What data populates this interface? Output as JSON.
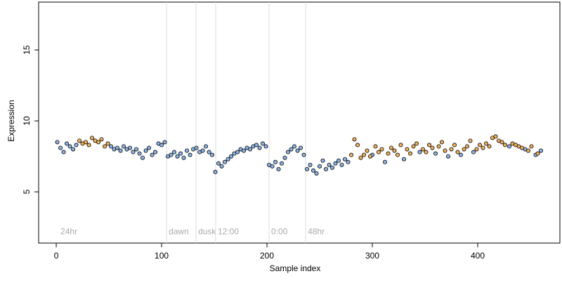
{
  "chart_data": {
    "type": "scatter",
    "x_label": "Sample index",
    "y_label": "Expression",
    "xlim": [
      -16.7,
      478
    ],
    "ylim": [
      1.39,
      18.37
    ],
    "xticks": [
      0,
      100,
      200,
      300,
      400
    ],
    "yticks": [
      5,
      10,
      15
    ],
    "grid": false,
    "series": [
      {
        "name": null,
        "color": "#8db5e6",
        "x": [
          1,
          4,
          7,
          10,
          13,
          16,
          19,
          52,
          55,
          58,
          61,
          64,
          67,
          70,
          73,
          76,
          79,
          82,
          85,
          88,
          91,
          94,
          97,
          100,
          103,
          106,
          109,
          112,
          115,
          118,
          121,
          124,
          127,
          130,
          133,
          136,
          139,
          142,
          145,
          148,
          151,
          154,
          157,
          160,
          163,
          166,
          169,
          172,
          175,
          178,
          181,
          184,
          187,
          190,
          193,
          196,
          199,
          202,
          205,
          208,
          211,
          214,
          217,
          220,
          223,
          226,
          229,
          232,
          235,
          238,
          241,
          244,
          247,
          250,
          253,
          256,
          259,
          262,
          265,
          268,
          271,
          274,
          277,
          300,
          312,
          330,
          345,
          360,
          372,
          384,
          396,
          430,
          445,
          455,
          460
        ],
        "values": [
          8.5,
          8.1,
          7.8,
          8.4,
          8.2,
          8.0,
          8.3,
          8.2,
          8.0,
          8.1,
          7.9,
          8.2,
          8.0,
          8.1,
          7.8,
          8.0,
          7.7,
          7.4,
          7.9,
          8.1,
          7.6,
          7.8,
          8.4,
          8.3,
          8.5,
          7.5,
          7.6,
          7.8,
          7.5,
          7.7,
          7.4,
          7.9,
          7.6,
          8.0,
          8.1,
          7.8,
          7.9,
          8.2,
          7.8,
          7.6,
          6.4,
          7.0,
          6.8,
          7.1,
          7.3,
          7.5,
          7.7,
          7.8,
          8.0,
          7.9,
          8.1,
          8.0,
          8.2,
          8.3,
          8.1,
          8.4,
          8.2,
          6.9,
          6.8,
          7.1,
          6.6,
          7.0,
          7.4,
          7.8,
          8.0,
          8.2,
          7.9,
          8.1,
          7.6,
          6.6,
          6.9,
          6.5,
          6.3,
          6.8,
          7.2,
          6.6,
          6.9,
          6.7,
          7.0,
          7.2,
          6.9,
          7.3,
          7.1,
          7.6,
          7.1,
          7.3,
          7.8,
          7.7,
          7.5,
          7.6,
          7.8,
          8.2,
          8.0,
          7.6,
          7.9
        ]
      },
      {
        "name": null,
        "color": "#f2b15e",
        "x": [
          22,
          25,
          28,
          31,
          34,
          37,
          40,
          43,
          46,
          49,
          280,
          283,
          286,
          289,
          292,
          295,
          298,
          303,
          306,
          309,
          315,
          318,
          321,
          324,
          327,
          333,
          336,
          339,
          342,
          348,
          351,
          354,
          357,
          363,
          366,
          369,
          375,
          378,
          381,
          387,
          390,
          393,
          399,
          402,
          405,
          408,
          411,
          414,
          417,
          420,
          423,
          426,
          433,
          436,
          439,
          442,
          448,
          451,
          457
        ],
        "values": [
          8.6,
          8.4,
          8.5,
          8.3,
          8.8,
          8.6,
          8.5,
          8.7,
          8.2,
          8.4,
          7.6,
          8.7,
          8.3,
          7.4,
          7.6,
          7.9,
          7.5,
          8.2,
          7.8,
          8.0,
          7.7,
          8.1,
          7.9,
          7.6,
          8.3,
          8.0,
          7.7,
          8.2,
          8.4,
          8.0,
          7.8,
          8.3,
          8.1,
          8.2,
          8.5,
          7.9,
          8.0,
          8.3,
          7.8,
          8.0,
          8.2,
          8.6,
          8.0,
          8.3,
          8.1,
          8.4,
          8.2,
          8.8,
          8.9,
          8.6,
          8.5,
          8.3,
          8.4,
          8.3,
          8.2,
          8.1,
          7.9,
          8.2,
          7.7
        ]
      }
    ],
    "annotations": [
      {
        "text": "24hr",
        "x": 2,
        "y": 2.0,
        "line": false
      },
      {
        "text": "dawn",
        "x": 104.7,
        "y": 2.0,
        "line": true
      },
      {
        "text": "dusk",
        "x": 132.7,
        "y": 2.0,
        "line": true
      },
      {
        "text": "12:00",
        "x": 151.3,
        "y": 2.0,
        "line": true
      },
      {
        "text": "0:00",
        "x": 202,
        "y": 2.0,
        "line": true
      },
      {
        "text": "48hr",
        "x": 236.7,
        "y": 2.0,
        "line": true
      }
    ]
  }
}
